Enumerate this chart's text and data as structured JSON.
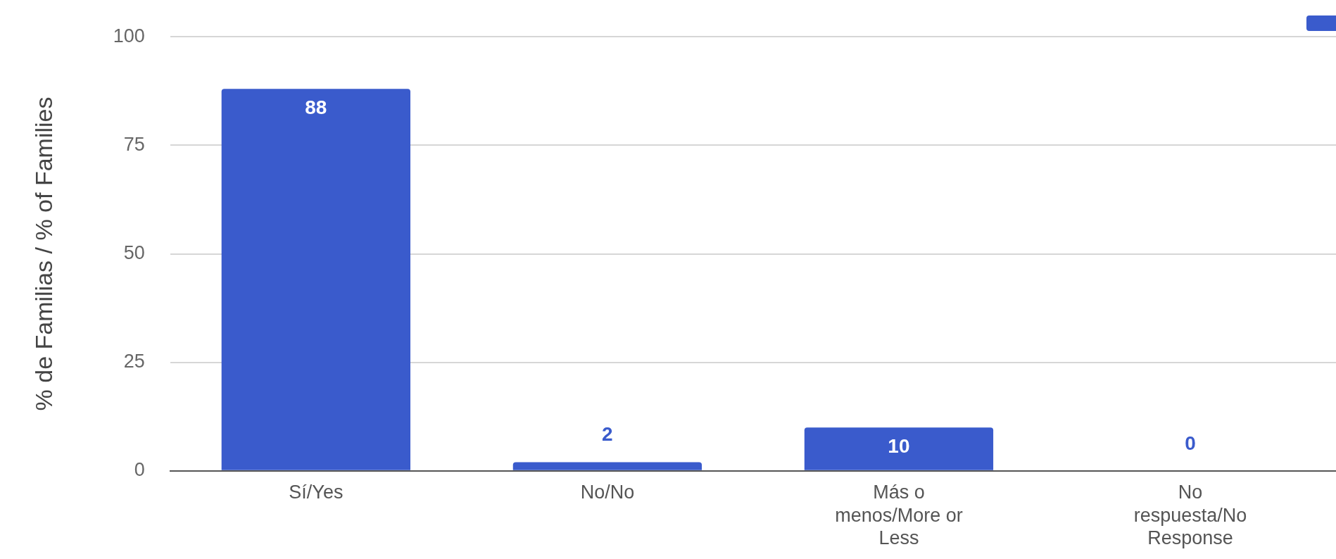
{
  "chart_data": {
    "type": "bar",
    "ylabel": "% de Familias / % of Families",
    "categories": [
      "Sí/Yes",
      "No/No",
      "Más o menos/More or Less",
      "No respuesta/No Response"
    ],
    "series": [
      {
        "color": "#3a5bcc",
        "values": [
          88,
          2,
          10,
          0
        ]
      }
    ],
    "ylim": [
      0,
      100
    ],
    "yticks": [
      0,
      25,
      50,
      75,
      100
    ],
    "grid": "y",
    "data_labels": true
  }
}
